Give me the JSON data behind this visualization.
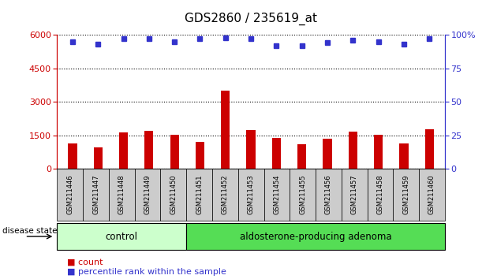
{
  "title": "GDS2860 / 235619_at",
  "samples": [
    "GSM211446",
    "GSM211447",
    "GSM211448",
    "GSM211449",
    "GSM211450",
    "GSM211451",
    "GSM211452",
    "GSM211453",
    "GSM211454",
    "GSM211455",
    "GSM211456",
    "GSM211457",
    "GSM211458",
    "GSM211459",
    "GSM211460"
  ],
  "counts": [
    1150,
    950,
    1620,
    1700,
    1530,
    1200,
    3500,
    1750,
    1380,
    1100,
    1350,
    1680,
    1520,
    1120,
    1780
  ],
  "percentiles": [
    95,
    93,
    97,
    97,
    95,
    97,
    98,
    97,
    92,
    92,
    94,
    96,
    95,
    93,
    97
  ],
  "control_count": 5,
  "adenoma_count": 10,
  "bar_color": "#cc0000",
  "dot_color": "#3333cc",
  "ylim_left": [
    0,
    6000
  ],
  "ylim_right": [
    0,
    100
  ],
  "yticks_left": [
    0,
    1500,
    3000,
    4500,
    6000
  ],
  "yticks_right": [
    0,
    25,
    50,
    75,
    100
  ],
  "control_color": "#ccffcc",
  "adenoma_color": "#55dd55",
  "sample_box_color": "#cccccc",
  "legend_count_color": "#cc0000",
  "legend_pct_color": "#3333cc",
  "grid_color": "#000000",
  "title_fontsize": 11,
  "tick_fontsize": 8,
  "sample_fontsize": 6,
  "state_fontsize": 8.5,
  "legend_fontsize": 8
}
